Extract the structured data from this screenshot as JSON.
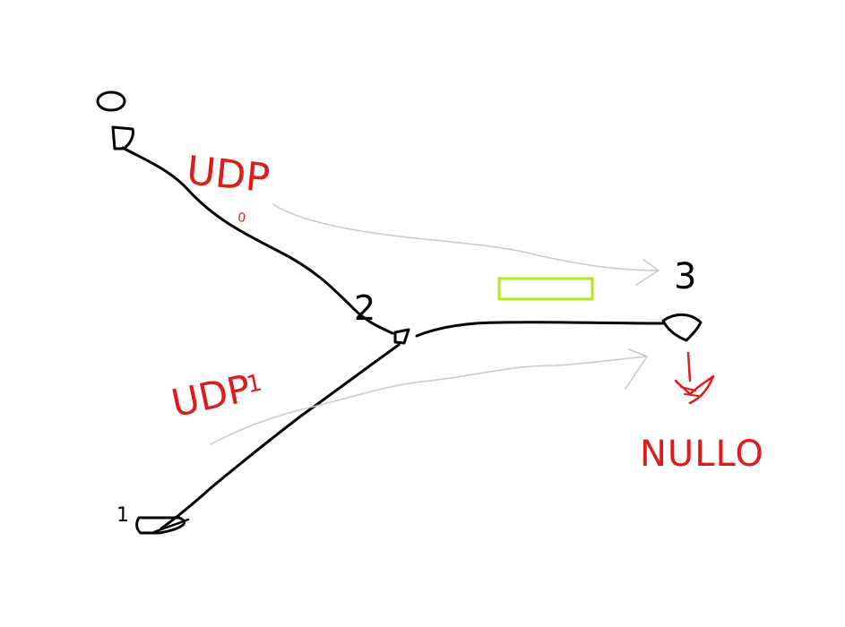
{
  "nodes": {
    "n0": {
      "label": "0"
    },
    "n1": {
      "label": "1"
    },
    "n2": {
      "label": "2"
    },
    "n3": {
      "label": "3"
    }
  },
  "flows": {
    "udp0": {
      "label": "UDP0",
      "prefix": "UDP",
      "sub": "0"
    },
    "udp1": {
      "label": "UDP1",
      "prefix": "UDP",
      "sub": "1"
    }
  },
  "sink": {
    "label": "NULLO"
  },
  "colors": {
    "ink": "#000000",
    "red": "#e01919",
    "gray_arrow": "#c8c8c8",
    "queue_box": "#b5e61d"
  }
}
